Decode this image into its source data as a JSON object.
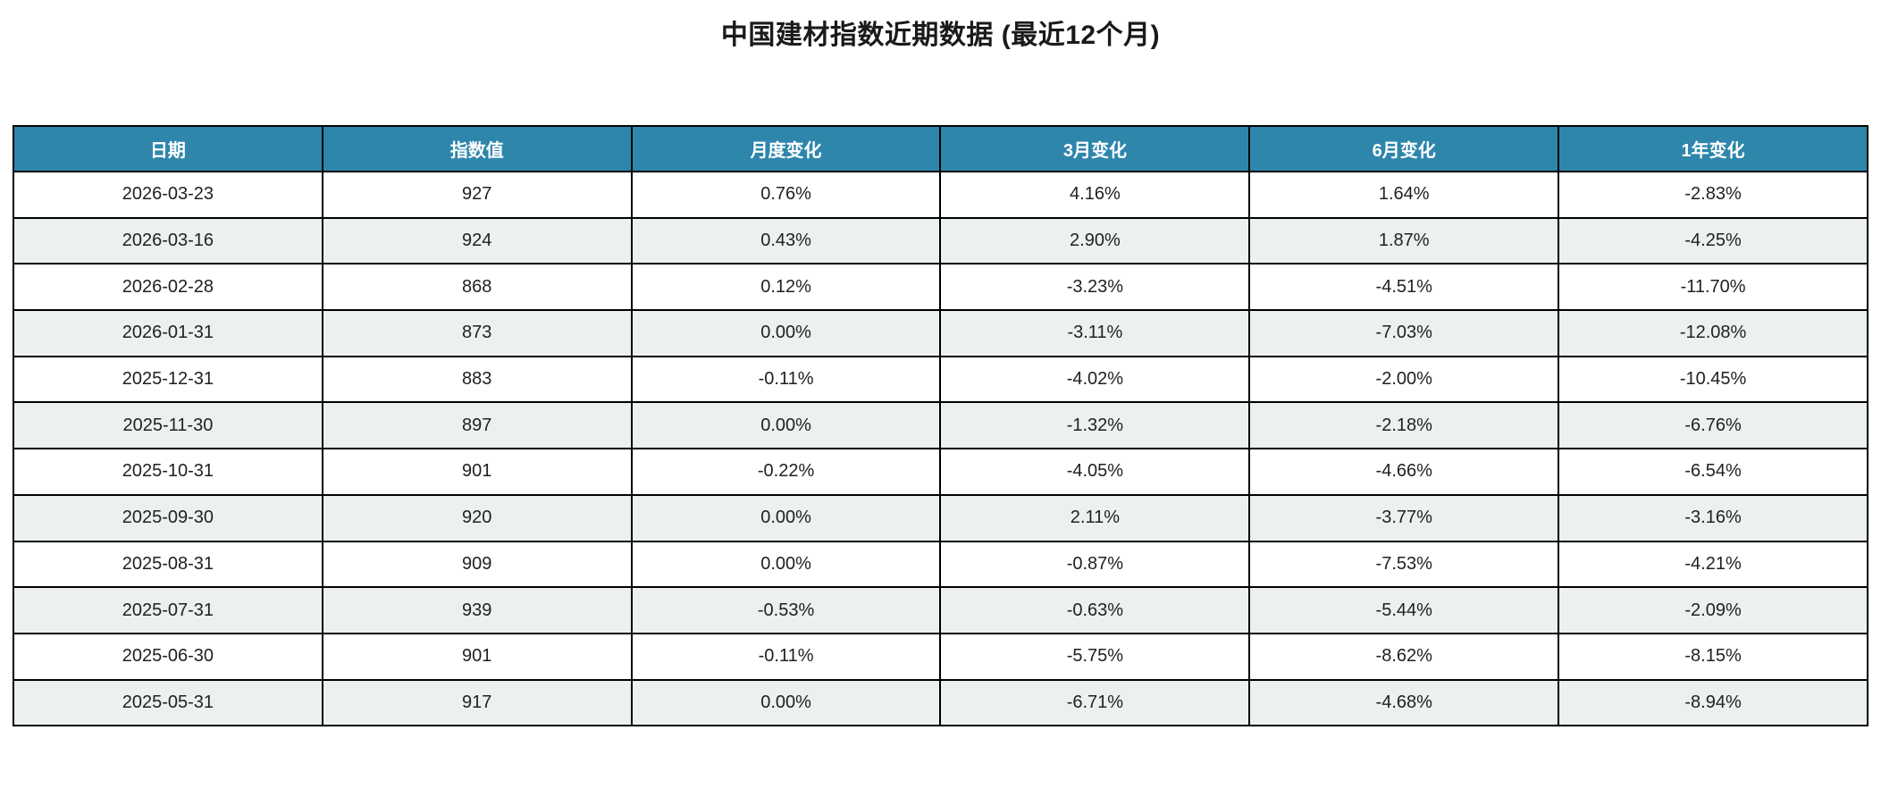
{
  "title": "中国建材指数近期数据 (最近12个月)",
  "colors": {
    "header_bg": "#2E86AB",
    "header_text": "#FFFFFF",
    "row_alt_bg": "#ECF0F1",
    "border": "#000000",
    "cell_text": "#212121"
  },
  "chart_data": {
    "type": "table",
    "title": "中国建材指数近期数据 (最近12个月)",
    "columns": [
      "日期",
      "指数值",
      "月度变化",
      "3月变化",
      "6月变化",
      "1年变化"
    ],
    "rows": [
      [
        "2026-03-23",
        "927",
        "0.76%",
        "4.16%",
        "1.64%",
        "-2.83%"
      ],
      [
        "2026-03-16",
        "924",
        "0.43%",
        "2.90%",
        "1.87%",
        "-4.25%"
      ],
      [
        "2026-02-28",
        "868",
        "0.12%",
        "-3.23%",
        "-4.51%",
        "-11.70%"
      ],
      [
        "2026-01-31",
        "873",
        "0.00%",
        "-3.11%",
        "-7.03%",
        "-12.08%"
      ],
      [
        "2025-12-31",
        "883",
        "-0.11%",
        "-4.02%",
        "-2.00%",
        "-10.45%"
      ],
      [
        "2025-11-30",
        "897",
        "0.00%",
        "-1.32%",
        "-2.18%",
        "-6.76%"
      ],
      [
        "2025-10-31",
        "901",
        "-0.22%",
        "-4.05%",
        "-4.66%",
        "-6.54%"
      ],
      [
        "2025-09-30",
        "920",
        "0.00%",
        "2.11%",
        "-3.77%",
        "-3.16%"
      ],
      [
        "2025-08-31",
        "909",
        "0.00%",
        "-0.87%",
        "-7.53%",
        "-4.21%"
      ],
      [
        "2025-07-31",
        "939",
        "-0.53%",
        "-0.63%",
        "-5.44%",
        "-2.09%"
      ],
      [
        "2025-06-30",
        "901",
        "-0.11%",
        "-5.75%",
        "-8.62%",
        "-8.15%"
      ],
      [
        "2025-05-31",
        "917",
        "0.00%",
        "-6.71%",
        "-4.68%",
        "-8.94%"
      ]
    ]
  }
}
